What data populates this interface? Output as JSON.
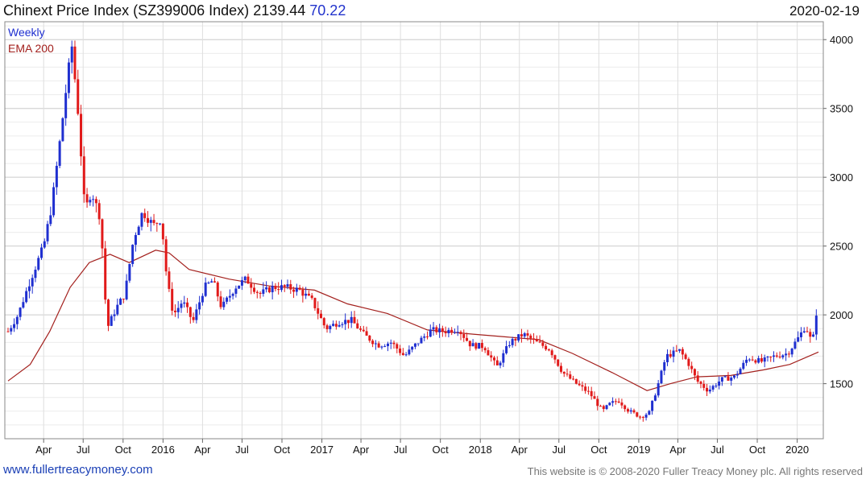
{
  "title": {
    "name": "Chinext Price Index (SZ399006 Index)",
    "last": "2139.44",
    "change": "70.22",
    "date": "2020-02-19"
  },
  "footer": {
    "website": "www.fullertreacymoney.com",
    "copyright": "This website is © 2008-2020 Fuller Treacy Money plc. All rights reserved"
  },
  "colors": {
    "up": "#1f2fd0",
    "down": "#e11a1a",
    "ema": "#a3201d",
    "grid": "#dddddd"
  },
  "chart_data": {
    "type": "candlestick",
    "title": "Chinext Price Index (SZ399006 Index)",
    "frequency": "Weekly",
    "legend": [
      "Weekly",
      "EMA 200"
    ],
    "legend_position": "top-left",
    "grid": true,
    "y_axis_position": "right",
    "ylim": [
      1100,
      4130
    ],
    "yticks": [
      1500,
      2000,
      2500,
      3000,
      3500,
      4000
    ],
    "x_start": "2015-01-09",
    "x_end": "2020-02-19",
    "xticks": [
      {
        "label": "Apr",
        "date": "2015-04-01"
      },
      {
        "label": "Jul",
        "date": "2015-07-01"
      },
      {
        "label": "Oct",
        "date": "2015-10-01"
      },
      {
        "label": "2016",
        "date": "2016-01-01"
      },
      {
        "label": "Apr",
        "date": "2016-04-01"
      },
      {
        "label": "Jul",
        "date": "2016-07-01"
      },
      {
        "label": "Oct",
        "date": "2016-10-01"
      },
      {
        "label": "2017",
        "date": "2017-01-01"
      },
      {
        "label": "Apr",
        "date": "2017-04-01"
      },
      {
        "label": "Jul",
        "date": "2017-07-01"
      },
      {
        "label": "Oct",
        "date": "2017-10-01"
      },
      {
        "label": "2018",
        "date": "2018-01-01"
      },
      {
        "label": "Apr",
        "date": "2018-04-01"
      },
      {
        "label": "Jul",
        "date": "2018-07-01"
      },
      {
        "label": "Oct",
        "date": "2018-10-01"
      },
      {
        "label": "2019",
        "date": "2019-01-01"
      },
      {
        "label": "Apr",
        "date": "2019-04-01"
      },
      {
        "label": "Jul",
        "date": "2019-07-01"
      },
      {
        "label": "Oct",
        "date": "2019-10-01"
      },
      {
        "label": "2020",
        "date": "2020-01-01"
      }
    ],
    "close_series": {
      "name": "Weekly",
      "points": [
        [
          "2015-01-09",
          1880
        ],
        [
          "2015-02-01",
          2000
        ],
        [
          "2015-03-01",
          2250
        ],
        [
          "2015-04-01",
          2500
        ],
        [
          "2015-04-20",
          2800
        ],
        [
          "2015-05-10",
          3300
        ],
        [
          "2015-05-25",
          3700
        ],
        [
          "2015-06-05",
          3950
        ],
        [
          "2015-06-20",
          3450
        ],
        [
          "2015-07-05",
          2750
        ],
        [
          "2015-07-20",
          2900
        ],
        [
          "2015-08-10",
          2700
        ],
        [
          "2015-08-25",
          1900
        ],
        [
          "2015-09-15",
          2050
        ],
        [
          "2015-10-05",
          2150
        ],
        [
          "2015-10-25",
          2550
        ],
        [
          "2015-11-15",
          2750
        ],
        [
          "2015-12-10",
          2650
        ],
        [
          "2015-12-28",
          2700
        ],
        [
          "2016-01-10",
          2250
        ],
        [
          "2016-01-25",
          2000
        ],
        [
          "2016-02-15",
          2100
        ],
        [
          "2016-03-10",
          1950
        ],
        [
          "2016-04-05",
          2200
        ],
        [
          "2016-04-25",
          2250
        ],
        [
          "2016-05-15",
          2050
        ],
        [
          "2016-06-15",
          2200
        ],
        [
          "2016-07-10",
          2260
        ],
        [
          "2016-08-10",
          2150
        ],
        [
          "2016-09-10",
          2200
        ],
        [
          "2016-10-10",
          2200
        ],
        [
          "2016-11-10",
          2180
        ],
        [
          "2016-12-10",
          2100
        ],
        [
          "2017-01-10",
          1900
        ],
        [
          "2017-02-10",
          1950
        ],
        [
          "2017-03-10",
          1960
        ],
        [
          "2017-04-10",
          1850
        ],
        [
          "2017-05-10",
          1780
        ],
        [
          "2017-06-10",
          1800
        ],
        [
          "2017-07-10",
          1700
        ],
        [
          "2017-08-10",
          1800
        ],
        [
          "2017-09-10",
          1890
        ],
        [
          "2017-10-10",
          1880
        ],
        [
          "2017-11-10",
          1900
        ],
        [
          "2017-12-10",
          1780
        ],
        [
          "2018-01-10",
          1770
        ],
        [
          "2018-02-08",
          1620
        ],
        [
          "2018-03-10",
          1800
        ],
        [
          "2018-04-10",
          1860
        ],
        [
          "2018-05-10",
          1800
        ],
        [
          "2018-06-10",
          1750
        ],
        [
          "2018-07-10",
          1580
        ],
        [
          "2018-08-10",
          1500
        ],
        [
          "2018-09-10",
          1430
        ],
        [
          "2018-10-10",
          1300
        ],
        [
          "2018-10-25",
          1350
        ],
        [
          "2018-11-15",
          1380
        ],
        [
          "2018-12-10",
          1300
        ],
        [
          "2019-01-05",
          1260
        ],
        [
          "2019-01-25",
          1290
        ],
        [
          "2019-02-15",
          1500
        ],
        [
          "2019-03-05",
          1700
        ],
        [
          "2019-04-05",
          1740
        ],
        [
          "2019-04-25",
          1650
        ],
        [
          "2019-05-15",
          1520
        ],
        [
          "2019-06-10",
          1450
        ],
        [
          "2019-07-10",
          1530
        ],
        [
          "2019-08-10",
          1550
        ],
        [
          "2019-09-10",
          1690
        ],
        [
          "2019-10-10",
          1660
        ],
        [
          "2019-11-10",
          1700
        ],
        [
          "2019-12-10",
          1720
        ],
        [
          "2020-01-05",
          1840
        ],
        [
          "2020-01-20",
          1920
        ],
        [
          "2020-02-05",
          1790
        ],
        [
          "2020-02-19",
          2139.44
        ]
      ]
    },
    "ema_series": {
      "name": "EMA 200",
      "points": [
        [
          "2015-01-09",
          1520
        ],
        [
          "2015-03-01",
          1640
        ],
        [
          "2015-04-15",
          1880
        ],
        [
          "2015-06-01",
          2200
        ],
        [
          "2015-07-15",
          2380
        ],
        [
          "2015-09-01",
          2440
        ],
        [
          "2015-10-15",
          2380
        ],
        [
          "2015-12-15",
          2470
        ],
        [
          "2016-01-15",
          2450
        ],
        [
          "2016-03-01",
          2330
        ],
        [
          "2016-06-01",
          2260
        ],
        [
          "2016-09-01",
          2210
        ],
        [
          "2016-12-15",
          2180
        ],
        [
          "2017-03-01",
          2080
        ],
        [
          "2017-06-01",
          2010
        ],
        [
          "2017-09-01",
          1890
        ],
        [
          "2017-12-15",
          1860
        ],
        [
          "2018-03-01",
          1840
        ],
        [
          "2018-05-15",
          1820
        ],
        [
          "2018-08-01",
          1720
        ],
        [
          "2018-11-01",
          1580
        ],
        [
          "2019-01-20",
          1450
        ],
        [
          "2019-03-15",
          1500
        ],
        [
          "2019-05-15",
          1550
        ],
        [
          "2019-08-01",
          1560
        ],
        [
          "2019-10-15",
          1600
        ],
        [
          "2019-12-15",
          1640
        ],
        [
          "2020-02-19",
          1730
        ]
      ]
    }
  }
}
